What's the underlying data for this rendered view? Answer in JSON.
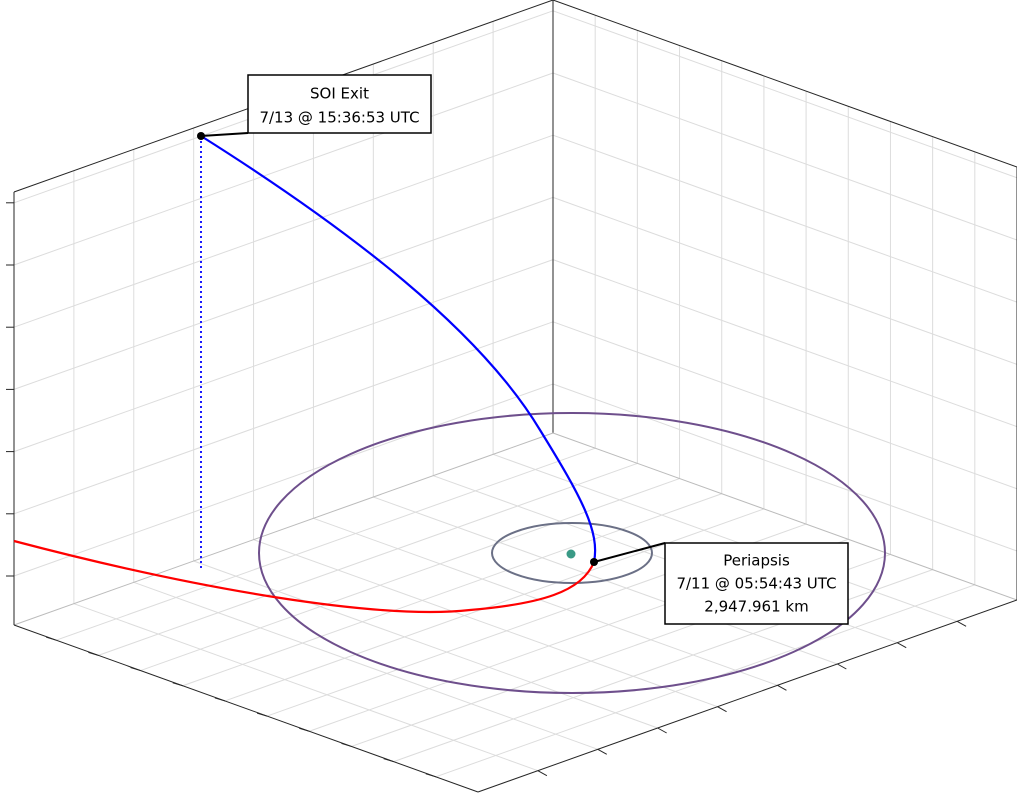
{
  "annotations": [
    {
      "title": "SOI Exit",
      "time": "7/13 @ 15:36:53 UTC"
    },
    {
      "title": "Periapsis",
      "time": "7/11 @ 05:54:43 UTC",
      "distance": "2,947.961 km"
    }
  ]
}
